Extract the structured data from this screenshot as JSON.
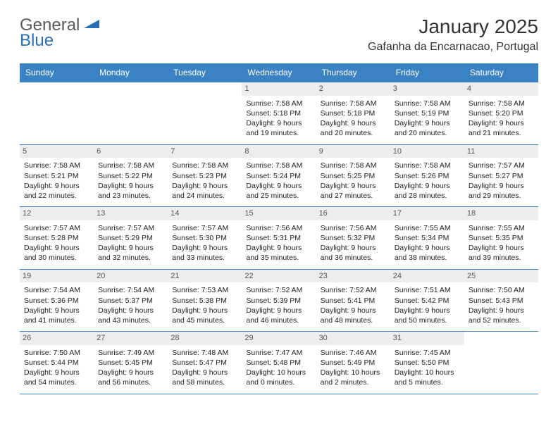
{
  "logo": {
    "part1": "General",
    "part2": "Blue"
  },
  "title": "January 2025",
  "location": "Gafanha da Encarnacao, Portugal",
  "header_bg": "#3b82c4",
  "header_text": "#ffffff",
  "rule_color": "#3b82c4",
  "daynum_bg": "#ecedee",
  "weekdays": [
    "Sunday",
    "Monday",
    "Tuesday",
    "Wednesday",
    "Thursday",
    "Friday",
    "Saturday"
  ],
  "weeks": [
    [
      null,
      null,
      null,
      {
        "n": "1",
        "sunrise": "7:58 AM",
        "sunset": "5:18 PM",
        "daylight": "9 hours and 19 minutes."
      },
      {
        "n": "2",
        "sunrise": "7:58 AM",
        "sunset": "5:18 PM",
        "daylight": "9 hours and 20 minutes."
      },
      {
        "n": "3",
        "sunrise": "7:58 AM",
        "sunset": "5:19 PM",
        "daylight": "9 hours and 20 minutes."
      },
      {
        "n": "4",
        "sunrise": "7:58 AM",
        "sunset": "5:20 PM",
        "daylight": "9 hours and 21 minutes."
      }
    ],
    [
      {
        "n": "5",
        "sunrise": "7:58 AM",
        "sunset": "5:21 PM",
        "daylight": "9 hours and 22 minutes."
      },
      {
        "n": "6",
        "sunrise": "7:58 AM",
        "sunset": "5:22 PM",
        "daylight": "9 hours and 23 minutes."
      },
      {
        "n": "7",
        "sunrise": "7:58 AM",
        "sunset": "5:23 PM",
        "daylight": "9 hours and 24 minutes."
      },
      {
        "n": "8",
        "sunrise": "7:58 AM",
        "sunset": "5:24 PM",
        "daylight": "9 hours and 25 minutes."
      },
      {
        "n": "9",
        "sunrise": "7:58 AM",
        "sunset": "5:25 PM",
        "daylight": "9 hours and 27 minutes."
      },
      {
        "n": "10",
        "sunrise": "7:58 AM",
        "sunset": "5:26 PM",
        "daylight": "9 hours and 28 minutes."
      },
      {
        "n": "11",
        "sunrise": "7:57 AM",
        "sunset": "5:27 PM",
        "daylight": "9 hours and 29 minutes."
      }
    ],
    [
      {
        "n": "12",
        "sunrise": "7:57 AM",
        "sunset": "5:28 PM",
        "daylight": "9 hours and 30 minutes."
      },
      {
        "n": "13",
        "sunrise": "7:57 AM",
        "sunset": "5:29 PM",
        "daylight": "9 hours and 32 minutes."
      },
      {
        "n": "14",
        "sunrise": "7:57 AM",
        "sunset": "5:30 PM",
        "daylight": "9 hours and 33 minutes."
      },
      {
        "n": "15",
        "sunrise": "7:56 AM",
        "sunset": "5:31 PM",
        "daylight": "9 hours and 35 minutes."
      },
      {
        "n": "16",
        "sunrise": "7:56 AM",
        "sunset": "5:32 PM",
        "daylight": "9 hours and 36 minutes."
      },
      {
        "n": "17",
        "sunrise": "7:55 AM",
        "sunset": "5:34 PM",
        "daylight": "9 hours and 38 minutes."
      },
      {
        "n": "18",
        "sunrise": "7:55 AM",
        "sunset": "5:35 PM",
        "daylight": "9 hours and 39 minutes."
      }
    ],
    [
      {
        "n": "19",
        "sunrise": "7:54 AM",
        "sunset": "5:36 PM",
        "daylight": "9 hours and 41 minutes."
      },
      {
        "n": "20",
        "sunrise": "7:54 AM",
        "sunset": "5:37 PM",
        "daylight": "9 hours and 43 minutes."
      },
      {
        "n": "21",
        "sunrise": "7:53 AM",
        "sunset": "5:38 PM",
        "daylight": "9 hours and 45 minutes."
      },
      {
        "n": "22",
        "sunrise": "7:52 AM",
        "sunset": "5:39 PM",
        "daylight": "9 hours and 46 minutes."
      },
      {
        "n": "23",
        "sunrise": "7:52 AM",
        "sunset": "5:41 PM",
        "daylight": "9 hours and 48 minutes."
      },
      {
        "n": "24",
        "sunrise": "7:51 AM",
        "sunset": "5:42 PM",
        "daylight": "9 hours and 50 minutes."
      },
      {
        "n": "25",
        "sunrise": "7:50 AM",
        "sunset": "5:43 PM",
        "daylight": "9 hours and 52 minutes."
      }
    ],
    [
      {
        "n": "26",
        "sunrise": "7:50 AM",
        "sunset": "5:44 PM",
        "daylight": "9 hours and 54 minutes."
      },
      {
        "n": "27",
        "sunrise": "7:49 AM",
        "sunset": "5:45 PM",
        "daylight": "9 hours and 56 minutes."
      },
      {
        "n": "28",
        "sunrise": "7:48 AM",
        "sunset": "5:47 PM",
        "daylight": "9 hours and 58 minutes."
      },
      {
        "n": "29",
        "sunrise": "7:47 AM",
        "sunset": "5:48 PM",
        "daylight": "10 hours and 0 minutes."
      },
      {
        "n": "30",
        "sunrise": "7:46 AM",
        "sunset": "5:49 PM",
        "daylight": "10 hours and 2 minutes."
      },
      {
        "n": "31",
        "sunrise": "7:45 AM",
        "sunset": "5:50 PM",
        "daylight": "10 hours and 5 minutes."
      },
      null
    ]
  ],
  "labels": {
    "sunrise": "Sunrise:",
    "sunset": "Sunset:",
    "daylight": "Daylight:"
  }
}
